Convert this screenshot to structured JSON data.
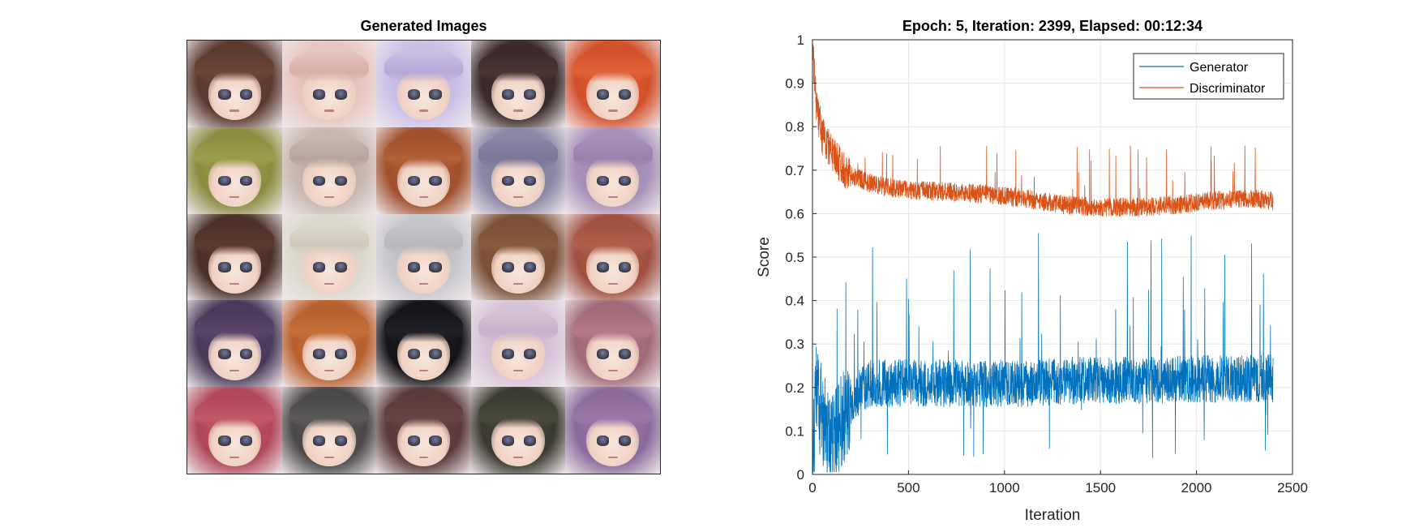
{
  "left_panel": {
    "title": "Generated Images",
    "tiles": [
      {
        "hair": "#5a3a30",
        "fringe": "#6e4638"
      },
      {
        "hair": "#e6c8c0",
        "fringe": "#d8b0a8"
      },
      {
        "hair": "#cbc2e6",
        "fringe": "#b7a8d8"
      },
      {
        "hair": "#3a2a2a",
        "fringe": "#4a3434"
      },
      {
        "hair": "#d2502a",
        "fringe": "#e06238"
      },
      {
        "hair": "#8c8c40",
        "fringe": "#9a9c4a"
      },
      {
        "hair": "#c8b8b0",
        "fringe": "#b8a49c"
      },
      {
        "hair": "#a0502c",
        "fringe": "#b26038"
      },
      {
        "hair": "#8a86a4",
        "fringe": "#7c7898"
      },
      {
        "hair": "#a890b8",
        "fringe": "#9a82ac"
      },
      {
        "hair": "#4a3028",
        "fringe": "#5c3a2e"
      },
      {
        "hair": "#dcd8cc",
        "fringe": "#cfcabc"
      },
      {
        "hair": "#c8c8cc",
        "fringe": "#b8b8bc"
      },
      {
        "hair": "#7a5036",
        "fringe": "#8a5a3c"
      },
      {
        "hair": "#a05040",
        "fringe": "#b0604a"
      },
      {
        "hair": "#4a3a5a",
        "fringe": "#5a4468"
      },
      {
        "hair": "#b8602e",
        "fringe": "#c66e38"
      },
      {
        "hair": "#141418",
        "fringe": "#202026"
      },
      {
        "hair": "#d8c4d8",
        "fringe": "#c8b2cc"
      },
      {
        "hair": "#a06a78",
        "fringe": "#b27888"
      },
      {
        "hair": "#b04858",
        "fringe": "#c05868"
      },
      {
        "hair": "#4a4848",
        "fringe": "#5a5858"
      },
      {
        "hair": "#5a3a3a",
        "fringe": "#6a4444"
      },
      {
        "hair": "#3a3a30",
        "fringe": "#4a4a3c"
      },
      {
        "hair": "#8a6a9a",
        "fringe": "#9a78a8"
      }
    ]
  },
  "chart_data": {
    "type": "line",
    "title": "Epoch: 5, Iteration: 2399, Elapsed: 00:12:34",
    "xlabel": "Iteration",
    "ylabel": "Score",
    "xlim": [
      0,
      2500
    ],
    "ylim": [
      0,
      1
    ],
    "xticks": [
      0,
      500,
      1000,
      1500,
      2000,
      2500
    ],
    "yticks": [
      0,
      0.1,
      0.2,
      0.3,
      0.4,
      0.5,
      0.6,
      0.7,
      0.8,
      0.9,
      1
    ],
    "grid": true,
    "legend_position": "top-right",
    "iterations": 2399,
    "series": [
      {
        "name": "Generator",
        "color": "#0072BD",
        "anchors": [
          [
            0,
            0.02
          ],
          [
            20,
            0.2
          ],
          [
            60,
            0.12
          ],
          [
            100,
            0.08
          ],
          [
            150,
            0.12
          ],
          [
            200,
            0.16
          ],
          [
            250,
            0.19
          ],
          [
            300,
            0.21
          ],
          [
            400,
            0.21
          ],
          [
            500,
            0.21
          ],
          [
            700,
            0.21
          ],
          [
            900,
            0.21
          ],
          [
            1100,
            0.21
          ],
          [
            1300,
            0.215
          ],
          [
            1500,
            0.215
          ],
          [
            1700,
            0.215
          ],
          [
            1900,
            0.22
          ],
          [
            2100,
            0.22
          ],
          [
            2300,
            0.22
          ],
          [
            2399,
            0.22
          ]
        ],
        "noise": 0.055,
        "spike_max": 0.57
      },
      {
        "name": "Discriminator",
        "color": "#D95319",
        "anchors": [
          [
            0,
            0.98
          ],
          [
            20,
            0.85
          ],
          [
            50,
            0.78
          ],
          [
            100,
            0.74
          ],
          [
            150,
            0.71
          ],
          [
            200,
            0.69
          ],
          [
            300,
            0.67
          ],
          [
            400,
            0.66
          ],
          [
            500,
            0.655
          ],
          [
            700,
            0.65
          ],
          [
            900,
            0.645
          ],
          [
            1100,
            0.635
          ],
          [
            1300,
            0.62
          ],
          [
            1500,
            0.615
          ],
          [
            1700,
            0.615
          ],
          [
            1900,
            0.62
          ],
          [
            2100,
            0.63
          ],
          [
            2300,
            0.635
          ],
          [
            2399,
            0.63
          ]
        ],
        "noise": 0.022,
        "spike_max": 0.76
      }
    ]
  }
}
